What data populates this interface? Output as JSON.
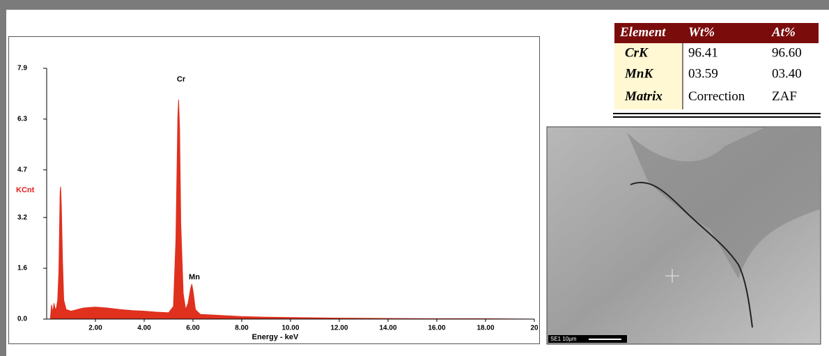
{
  "chart_data": {
    "type": "area",
    "x_label": "Energy - keV",
    "y_label": "KCnt",
    "annotations": [
      "Cr",
      "Mn"
    ],
    "x": [
      0.15,
      0.2,
      0.25,
      0.3,
      0.35,
      0.4,
      0.45,
      0.5,
      0.55,
      0.57,
      0.6,
      0.65,
      0.7,
      0.8,
      1.0,
      1.5,
      2.0,
      2.5,
      3.0,
      3.5,
      4.0,
      4.5,
      5.0,
      5.2,
      5.3,
      5.38,
      5.41,
      5.45,
      5.5,
      5.6,
      5.7,
      5.8,
      5.9,
      5.95,
      6.0,
      6.1,
      6.3,
      7,
      8,
      9,
      10,
      12,
      14,
      16,
      18,
      20
    ],
    "values": [
      0,
      0.45,
      0.2,
      0.5,
      0.3,
      0.35,
      0.6,
      1.5,
      4.0,
      4.17,
      3.6,
      1.8,
      0.6,
      0.3,
      0.25,
      0.35,
      0.38,
      0.35,
      0.3,
      0.27,
      0.25,
      0.22,
      0.2,
      0.4,
      2.5,
      6.4,
      6.91,
      6.0,
      3.0,
      0.8,
      0.3,
      0.5,
      0.95,
      1.1,
      0.9,
      0.3,
      0.15,
      0.12,
      0.08,
      0.06,
      0.05,
      0.03,
      0.02,
      0.01,
      0.01,
      0
    ],
    "color": "#e0301e",
    "xlim": [
      0,
      20
    ],
    "xticks": [
      {
        "value": 2,
        "label": "2.00"
      },
      {
        "value": 4,
        "label": "4.00"
      },
      {
        "value": 6,
        "label": "6.00"
      },
      {
        "value": 8,
        "label": "8.00"
      },
      {
        "value": 10,
        "label": "10.00"
      },
      {
        "value": 12,
        "label": "12.00"
      },
      {
        "value": 14,
        "label": "14.00"
      },
      {
        "value": 16,
        "label": "16.00"
      },
      {
        "value": 18,
        "label": "18.00"
      },
      20
    ],
    "ylim": [
      0,
      7.9
    ],
    "yticks": [
      {
        "value": 0,
        "label": "0.0"
      },
      1.6,
      3.2,
      4.7,
      6.3,
      7.9
    ]
  },
  "table": {
    "header": [
      "Element",
      "Wt%",
      "At%"
    ],
    "rows": [
      [
        "CrK",
        "96.41",
        "96.60"
      ],
      [
        "MnK",
        "03.59",
        "03.40"
      ],
      [
        "Matrix",
        "Correction",
        "ZAF"
      ]
    ]
  },
  "image": {
    "scale_label": "SE1  10µm"
  }
}
